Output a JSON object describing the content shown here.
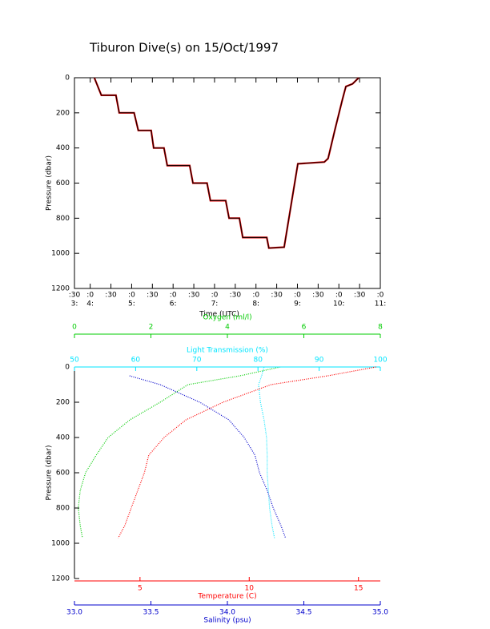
{
  "chart_data": [
    {
      "type": "line",
      "title": "Tiburon Dive(s) on 15/Oct/1997",
      "xlabel": "Time (UTC)",
      "ylabel": "Pressure (dbar)",
      "xlim": [
        3.62,
        11
      ],
      "xticks": [
        {
          "value": 3.62,
          "label": ":30"
        },
        {
          "value": 4,
          "label": ":0"
        },
        {
          "value": 4.5,
          "label": ":30"
        },
        {
          "value": 5,
          "label": ":0"
        },
        {
          "value": 5.5,
          "label": ":30"
        },
        {
          "value": 6,
          "label": ":0"
        },
        {
          "value": 6.5,
          "label": ":30"
        },
        {
          "value": 7,
          "label": ":0"
        },
        {
          "value": 7.5,
          "label": ":30"
        },
        {
          "value": 8,
          "label": ":0"
        },
        {
          "value": 8.5,
          "label": ":30"
        },
        {
          "value": 9,
          "label": ":0"
        },
        {
          "value": 9.5,
          "label": ":30"
        },
        {
          "value": 10,
          "label": ":0"
        },
        {
          "value": 10.5,
          "label": ":30"
        },
        {
          "value": 11,
          "label": ":0"
        }
      ],
      "xticks_hour": [
        {
          "value": 3.62,
          "label": "3:"
        },
        {
          "value": 4,
          "label": "4:"
        },
        {
          "value": 5,
          "label": "5:"
        },
        {
          "value": 6,
          "label": "6:"
        },
        {
          "value": 7,
          "label": "7:"
        },
        {
          "value": 8,
          "label": "8:"
        },
        {
          "value": 9,
          "label": "9:"
        },
        {
          "value": 10,
          "label": "10:"
        },
        {
          "value": 11,
          "label": "11:"
        }
      ],
      "ylim": [
        0,
        1200
      ],
      "yticks": [
        0,
        200,
        400,
        600,
        800,
        1000,
        1200
      ],
      "y_reversed": true,
      "x": [
        4.1,
        4.27,
        4.62,
        4.7,
        5.06,
        5.16,
        5.47,
        5.53,
        5.78,
        5.86,
        6.4,
        6.48,
        6.82,
        6.9,
        7.27,
        7.35,
        7.6,
        7.68,
        8.26,
        8.31,
        8.68,
        9.01,
        9.65,
        9.74,
        9.9,
        10.09,
        10.17,
        10.33,
        10.48
      ],
      "values": [
        0,
        100,
        100,
        200,
        200,
        300,
        300,
        400,
        400,
        500,
        500,
        600,
        600,
        700,
        700,
        800,
        800,
        910,
        910,
        970,
        965,
        490,
        480,
        460,
        300,
        120,
        50,
        35,
        0
      ],
      "color": "#000000"
    },
    {
      "type": "profile",
      "ylabel": "Pressure (dbar)",
      "ylim": [
        0,
        1200
      ],
      "yticks": [
        0,
        200,
        400,
        600,
        800,
        1000,
        1200
      ],
      "y_reversed": true,
      "y": [
        0,
        50,
        100,
        200,
        300,
        400,
        500,
        600,
        700,
        800,
        900,
        970
      ],
      "axes": [
        {
          "label": "Oxygen (ml/l)",
          "color": "#00cc00",
          "position": "top",
          "xlim": [
            0,
            8
          ],
          "xticks": [
            0,
            2,
            4,
            6,
            8
          ],
          "values": [
            5.38,
            4.33,
            2.97,
            2.24,
            1.45,
            0.88,
            0.57,
            0.29,
            0.15,
            0.1,
            0.15,
            0.21
          ]
        },
        {
          "label": "Light Transmission (%)",
          "color": "#00e5ff",
          "position": "top",
          "xlim": [
            50,
            100
          ],
          "xticks": [
            50,
            60,
            70,
            80,
            90,
            100
          ],
          "values": [
            81.0,
            80.6,
            80.1,
            80.4,
            81.0,
            81.4,
            81.5,
            81.5,
            81.7,
            81.9,
            82.3,
            82.7
          ]
        },
        {
          "label": "Temperature (C)",
          "color": "#ff0000",
          "position": "bottom",
          "xlim": [
            2,
            16
          ],
          "xticks": [
            5,
            10,
            15
          ],
          "values": [
            15.8,
            13.6,
            11.0,
            8.8,
            7.1,
            6.1,
            5.4,
            5.2,
            4.9,
            4.6,
            4.3,
            4.0
          ]
        },
        {
          "label": "Salinity (psu)",
          "color": "#0000cc",
          "position": "bottom",
          "xlim": [
            33,
            35
          ],
          "xticks": [
            {
              "value": 33,
              "label": "33.0"
            },
            {
              "value": 33.5,
              "label": "33.5"
            },
            {
              "value": 34,
              "label": "34.0"
            },
            {
              "value": 34.5,
              "label": "34.5"
            },
            {
              "value": 35,
              "label": "35.0"
            }
          ],
          "values": [
            null,
            33.36,
            33.56,
            33.82,
            34.01,
            34.11,
            34.18,
            34.21,
            34.26,
            34.3,
            34.35,
            34.38
          ]
        }
      ]
    }
  ]
}
